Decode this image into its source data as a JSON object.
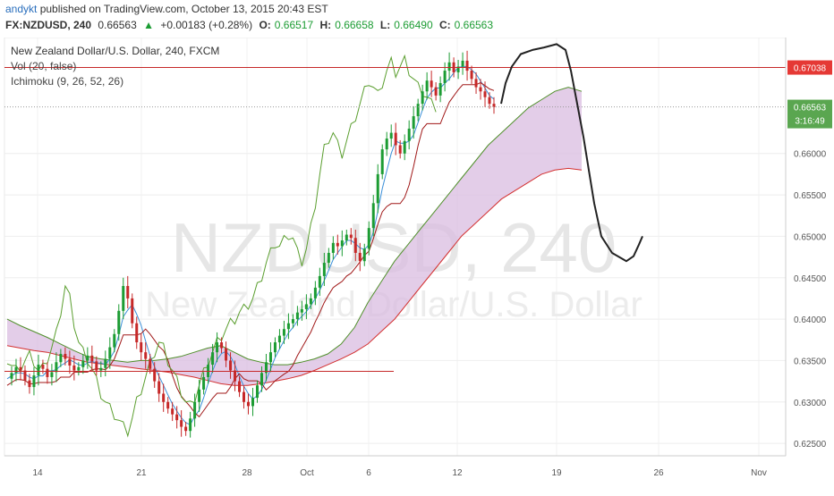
{
  "header": {
    "author": "andykt",
    "published_text": "published on TradingView.com, October 13, 2015 20:43 EST",
    "symbol": "FX:NZDUSD, 240",
    "last": "0.66563",
    "change_arrow": "▲",
    "change": "+0.00183 (+0.28%)",
    "o_label": "O:",
    "o_value": "0.66517",
    "h_label": "H:",
    "h_value": "0.66658",
    "l_label": "L:",
    "l_value": "0.66490",
    "c_label": "C:",
    "c_value": "0.66563"
  },
  "legend": {
    "title": "New Zealand Dollar/U.S. Dollar, 240, FXCM",
    "vol": "Vol (20, false)",
    "ichimoku": "Ichimoku (9, 26, 52, 26)"
  },
  "watermark": {
    "symbol": "NZDUSD, 240",
    "name": "New Zealand Dollar/U.S. Dollar"
  },
  "colors": {
    "up": "#1c9c33",
    "down": "#c62828",
    "tenkan": "#3a8fd9",
    "kijun": "#a01818",
    "chikou": "#5a9e2e",
    "cloud": "#d9bce0",
    "resistance": "#c62828",
    "price_tag": "#5aa650",
    "resistance_tag": "#e53935"
  },
  "chart_data": {
    "type": "candlestick",
    "symbol": "FX:NZDUSD",
    "timeframe": "240",
    "ylim": [
      0.6235,
      0.674
    ],
    "y_ticks": [
      "0.66000",
      "0.65500",
      "0.65000",
      "0.64500",
      "0.64000",
      "0.63500",
      "0.63000",
      "0.62500"
    ],
    "x_ticks": [
      "14",
      "21",
      "28",
      "Oct",
      "6",
      "12",
      "19",
      "26",
      "Nov"
    ],
    "resistance_level": 0.67038,
    "resistance_label": "0.67038",
    "current_price_label": "0.66563",
    "countdown_label": "3:16:49",
    "price_path": [
      0.6328,
      0.6335,
      0.6342,
      0.6338,
      0.6326,
      0.6318,
      0.6332,
      0.6345,
      0.634,
      0.633,
      0.6336,
      0.6348,
      0.6358,
      0.6352,
      0.6344,
      0.6338,
      0.6342,
      0.635,
      0.6356,
      0.6349,
      0.6338,
      0.6341,
      0.6352,
      0.6366,
      0.6382,
      0.641,
      0.644,
      0.6425,
      0.6395,
      0.6372,
      0.636,
      0.6352,
      0.634,
      0.6325,
      0.631,
      0.63,
      0.6292,
      0.6285,
      0.6278,
      0.627,
      0.6265,
      0.628,
      0.63,
      0.6315,
      0.633,
      0.6345,
      0.636,
      0.6372,
      0.6365,
      0.635,
      0.6338,
      0.6325,
      0.6312,
      0.63,
      0.6295,
      0.6305,
      0.632,
      0.6335,
      0.6348,
      0.636,
      0.6372,
      0.638,
      0.6388,
      0.6395,
      0.64,
      0.6408,
      0.6412,
      0.6418,
      0.6425,
      0.6438,
      0.6452,
      0.6468,
      0.648,
      0.6492,
      0.6488,
      0.6495,
      0.6502,
      0.6498,
      0.648,
      0.647,
      0.6485,
      0.651,
      0.654,
      0.6575,
      0.6605,
      0.6618,
      0.6625,
      0.661,
      0.66,
      0.6615,
      0.663,
      0.6645,
      0.666,
      0.6675,
      0.6688,
      0.668,
      0.667,
      0.6685,
      0.67,
      0.671,
      0.6698,
      0.6705,
      0.6712,
      0.67,
      0.669,
      0.668,
      0.6675,
      0.6668,
      0.666,
      0.6656
    ],
    "cloud_top": [
      0.64,
      0.6392,
      0.6385,
      0.6378,
      0.637,
      0.6362,
      0.6355,
      0.6352,
      0.635,
      0.6348,
      0.635,
      0.635,
      0.6352,
      0.6355,
      0.636,
      0.6365,
      0.6368,
      0.636,
      0.6352,
      0.6348,
      0.6345,
      0.6345,
      0.6348,
      0.6352,
      0.6358,
      0.637,
      0.639,
      0.642,
      0.6445,
      0.647,
      0.649,
      0.651,
      0.653,
      0.655,
      0.657,
      0.659,
      0.661,
      0.6625,
      0.664,
      0.6655,
      0.6665,
      0.6675,
      0.668,
      0.6675
    ],
    "cloud_bottom": [
      0.6368,
      0.6365,
      0.6362,
      0.636,
      0.6356,
      0.6352,
      0.6348,
      0.6346,
      0.6344,
      0.6342,
      0.634,
      0.6338,
      0.6336,
      0.6333,
      0.633,
      0.6326,
      0.6322,
      0.632,
      0.632,
      0.6322,
      0.6325,
      0.6328,
      0.6332,
      0.6338,
      0.6345,
      0.6352,
      0.636,
      0.637,
      0.6385,
      0.64,
      0.642,
      0.644,
      0.646,
      0.648,
      0.65,
      0.6515,
      0.653,
      0.6545,
      0.6555,
      0.6565,
      0.6575,
      0.658,
      0.6582,
      0.658
    ],
    "forecast_drawing": [
      0.666,
      0.6685,
      0.6705,
      0.672,
      0.6725,
      0.6728,
      0.6732,
      0.6725,
      0.67,
      0.666,
      0.662,
      0.658,
      0.654,
      0.65,
      0.648,
      0.647,
      0.6476,
      0.649,
      0.65
    ]
  }
}
